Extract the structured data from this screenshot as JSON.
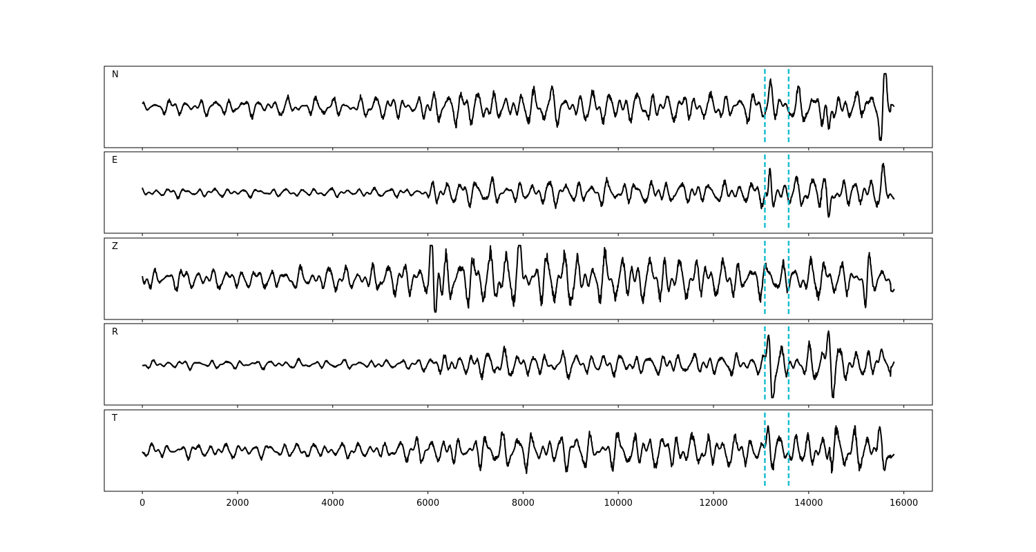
{
  "chart_data": {
    "type": "line",
    "title": "",
    "xlabel": "",
    "ylabel": "",
    "xlim": [
      -800,
      16600
    ],
    "x_ticks": [
      0,
      2000,
      4000,
      6000,
      8000,
      10000,
      12000,
      14000,
      16000
    ],
    "x_tick_labels": [
      "0",
      "2000",
      "4000",
      "6000",
      "8000",
      "10000",
      "12000",
      "14000",
      "16000"
    ],
    "grid": false,
    "trace_range": [
      0,
      15800
    ],
    "markers": {
      "color": "#17becf",
      "style": "dashed",
      "x": [
        13080,
        13580
      ]
    },
    "panels": [
      {
        "label": "N",
        "noise": [
          [
            0,
            0.18
          ],
          [
            1500,
            0.24
          ],
          [
            4500,
            0.28
          ],
          [
            6000,
            0.42
          ],
          [
            8000,
            0.52
          ],
          [
            10000,
            0.45
          ],
          [
            12000,
            0.4
          ],
          [
            13000,
            0.42
          ],
          [
            13600,
            0.45
          ],
          [
            15000,
            0.6
          ],
          [
            15800,
            0.4
          ]
        ],
        "events": [
          [
            15800,
            0
          ],
          [
            15600,
            0.85
          ],
          [
            15520,
            -0.8
          ],
          [
            14420,
            -0.95
          ],
          [
            13200,
            0.55
          ],
          [
            15120,
            0.4
          ]
        ],
        "end_offset": 0.1
      },
      {
        "label": "E",
        "noise": [
          [
            0,
            0.14
          ],
          [
            3000,
            0.12
          ],
          [
            5800,
            0.13
          ],
          [
            6000,
            0.35
          ],
          [
            8000,
            0.35
          ],
          [
            10000,
            0.35
          ],
          [
            12000,
            0.3
          ],
          [
            13000,
            0.35
          ],
          [
            13600,
            0.45
          ],
          [
            15000,
            0.5
          ],
          [
            15800,
            0.45
          ]
        ],
        "events": [
          [
            13180,
            1.0
          ],
          [
            13240,
            -0.4
          ],
          [
            13150,
            -0.7
          ],
          [
            14420,
            -0.85
          ],
          [
            14280,
            0.4
          ],
          [
            15560,
            0.4
          ]
        ],
        "end_offset": -0.05
      },
      {
        "label": "Z",
        "noise": [
          [
            0,
            0.35
          ],
          [
            1000,
            0.3
          ],
          [
            3000,
            0.3
          ],
          [
            5800,
            0.45
          ],
          [
            6050,
            0.95
          ],
          [
            7000,
            0.7
          ],
          [
            8000,
            0.85
          ],
          [
            10000,
            0.7
          ],
          [
            12000,
            0.6
          ],
          [
            13000,
            0.5
          ],
          [
            13600,
            0.55
          ],
          [
            15000,
            0.5
          ],
          [
            15800,
            0.4
          ]
        ],
        "events": [
          [
            6080,
            1.0
          ],
          [
            6150,
            -0.9
          ],
          [
            15200,
            -0.8
          ],
          [
            15250,
            0.6
          ],
          [
            7950,
            0.9
          ]
        ],
        "end_offset": -0.3
      },
      {
        "label": "R",
        "noise": [
          [
            0,
            0.12
          ],
          [
            5800,
            0.13
          ],
          [
            6000,
            0.35
          ],
          [
            8000,
            0.38
          ],
          [
            10000,
            0.3
          ],
          [
            12000,
            0.3
          ],
          [
            13000,
            0.3
          ],
          [
            13300,
            0.5
          ],
          [
            14000,
            0.55
          ],
          [
            15800,
            0.45
          ]
        ],
        "events": [
          [
            13160,
            0.85
          ],
          [
            13230,
            -1.0
          ],
          [
            14420,
            0.85
          ],
          [
            14520,
            -0.45
          ],
          [
            15520,
            0.45
          ]
        ],
        "end_offset": 0.0
      },
      {
        "label": "T",
        "noise": [
          [
            0,
            0.18
          ],
          [
            2000,
            0.22
          ],
          [
            4500,
            0.22
          ],
          [
            6000,
            0.35
          ],
          [
            7000,
            0.52
          ],
          [
            9000,
            0.52
          ],
          [
            11000,
            0.5
          ],
          [
            13000,
            0.45
          ],
          [
            13600,
            0.5
          ],
          [
            14200,
            0.7
          ],
          [
            15000,
            0.6
          ],
          [
            15800,
            0.45
          ]
        ],
        "events": [
          [
            14430,
            0.95
          ],
          [
            14400,
            -0.85
          ],
          [
            15480,
            0.95
          ],
          [
            15580,
            -0.85
          ],
          [
            13150,
            0.5
          ]
        ],
        "end_offset": -0.2
      }
    ]
  }
}
